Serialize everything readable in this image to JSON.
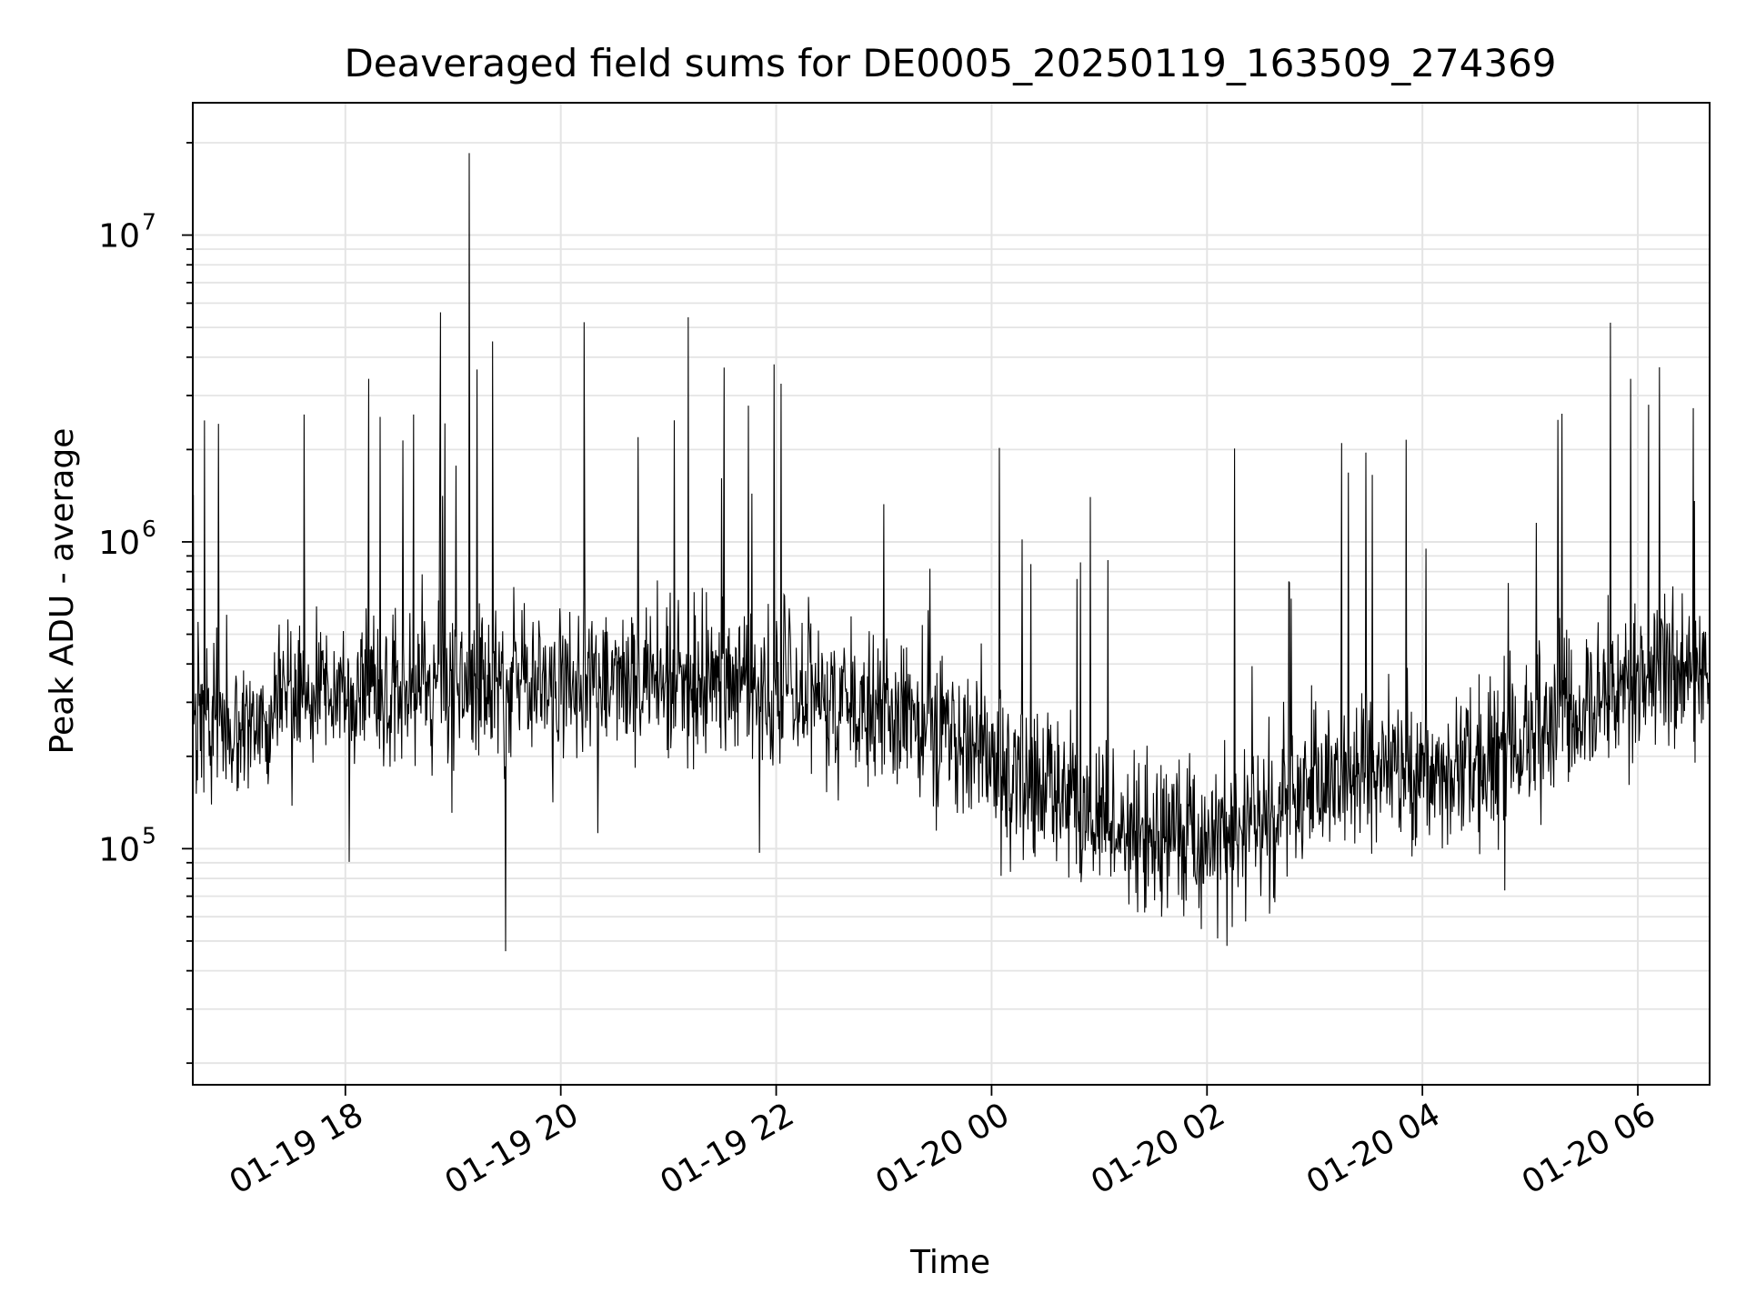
{
  "chart_data": {
    "type": "line",
    "title": "Deaveraged field sums for DE0005_20250119_163509_274369",
    "xlabel": "Time",
    "ylabel": "Peak ADU - average",
    "yscale": "log",
    "xlim": [
      "2025-01-19 16:35",
      "2025-01-20 06:40"
    ],
    "ylim": [
      17000,
      27000000
    ],
    "x_ticks": [
      "01-19 18",
      "01-19 20",
      "01-19 22",
      "01-20 00",
      "01-20 02",
      "01-20 04",
      "01-20 06"
    ],
    "x_tick_values": [
      "2025-01-19 18:00",
      "2025-01-19 20:00",
      "2025-01-19 22:00",
      "2025-01-20 00:00",
      "2025-01-20 02:00",
      "2025-01-20 04:00",
      "2025-01-20 06:00"
    ],
    "y_ticks": [
      {
        "value": 100000,
        "base": "10",
        "exp": "5"
      },
      {
        "value": 1000000,
        "base": "10",
        "exp": "6"
      },
      {
        "value": 10000000,
        "base": "10",
        "exp": "7"
      }
    ],
    "grid": true,
    "line_color": "#000000",
    "series": [
      {
        "x": [
          "2025-01-19 16:35",
          "2025-01-19 17:00",
          "2025-01-19 17:30",
          "2025-01-19 18:00",
          "2025-01-19 18:30",
          "2025-01-19 19:00",
          "2025-01-19 19:30",
          "2025-01-19 20:00",
          "2025-01-19 20:30",
          "2025-01-19 21:00",
          "2025-01-19 21:30",
          "2025-01-19 22:00",
          "2025-01-19 22:30",
          "2025-01-19 23:00",
          "2025-01-19 23:30",
          "2025-01-20 00:00",
          "2025-01-20 00:30",
          "2025-01-20 01:00",
          "2025-01-20 01:30",
          "2025-01-20 02:00",
          "2025-01-20 02:30",
          "2025-01-20 03:00",
          "2025-01-20 03:30",
          "2025-01-20 04:00",
          "2025-01-20 04:30",
          "2025-01-20 05:00",
          "2025-01-20 05:30",
          "2025-01-20 06:00",
          "2025-01-20 06:40"
        ],
        "y": [
          280000,
          250000,
          300000,
          320000,
          340000,
          330000,
          350000,
          340000,
          330000,
          340000,
          350000,
          330000,
          310000,
          280000,
          240000,
          200000,
          150000,
          120000,
          110000,
          100000,
          120000,
          160000,
          190000,
          170000,
          190000,
          240000,
          300000,
          360000,
          380000
        ]
      }
    ],
    "spikes": [
      {
        "x": "2025-01-19 17:37",
        "y": 2600000
      },
      {
        "x": "2025-01-19 18:13",
        "y": 3400000
      },
      {
        "x": "2025-01-19 18:38",
        "y": 2600000
      },
      {
        "x": "2025-01-19 18:53",
        "y": 5600000
      },
      {
        "x": "2025-01-19 19:09",
        "y": 18500000
      },
      {
        "x": "2025-01-19 19:22",
        "y": 4500000
      },
      {
        "x": "2025-01-19 20:13",
        "y": 5200000
      },
      {
        "x": "2025-01-19 21:11",
        "y": 5400000
      },
      {
        "x": "2025-01-19 21:31",
        "y": 3700000
      },
      {
        "x": "2025-01-20 00:55",
        "y": 1400000
      },
      {
        "x": "2025-01-20 03:15",
        "y": 2100000
      },
      {
        "x": "2025-01-20 05:56",
        "y": 3400000
      },
      {
        "x": "2025-01-20 06:06",
        "y": 2800000
      }
    ]
  }
}
